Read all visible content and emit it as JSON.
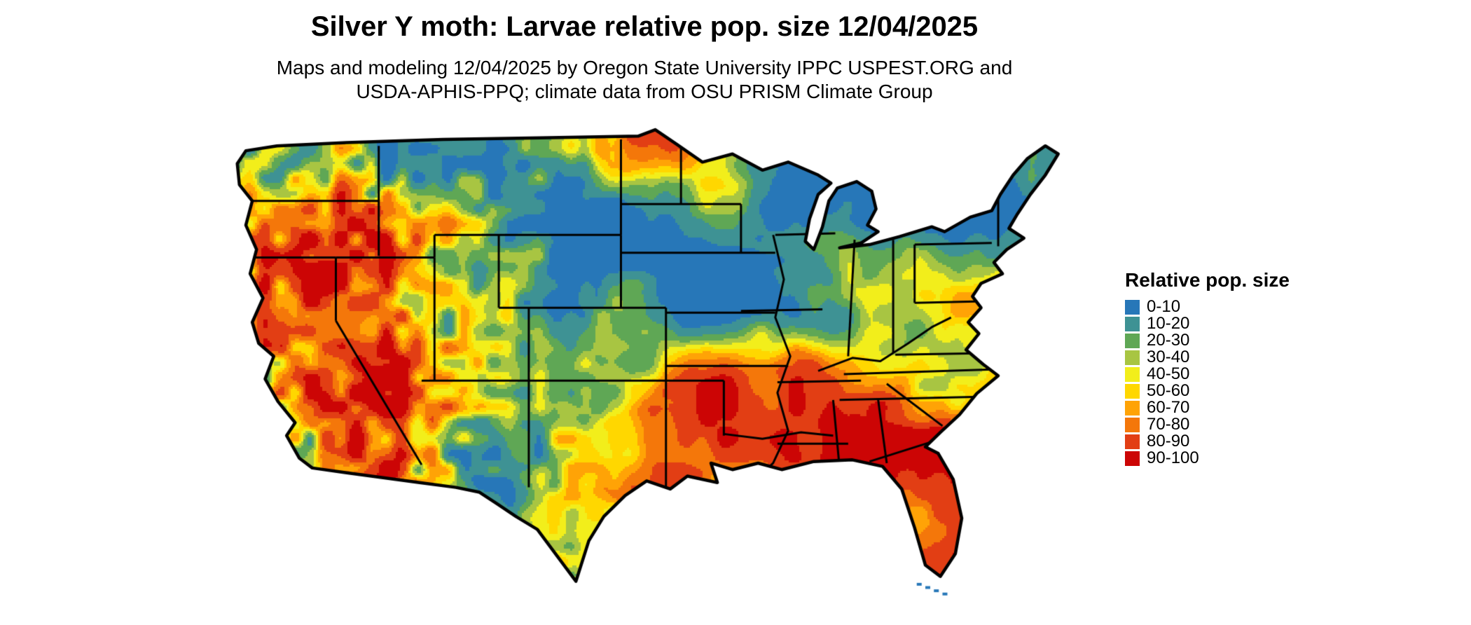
{
  "title": "Silver Y moth: Larvae relative pop. size 12/04/2025",
  "subtitle": {
    "line1": "Maps and modeling 12/04/2025 by Oregon State University IPPC USPEST.ORG and",
    "line2": "USDA-APHIS-PPQ; climate data from OSU PRISM Climate Group"
  },
  "legend": {
    "title": "Relative pop. size",
    "entries": [
      {
        "label": "0-10",
        "color": "#2777B8"
      },
      {
        "label": "10-20",
        "color": "#3E9294"
      },
      {
        "label": "20-30",
        "color": "#5FA755"
      },
      {
        "label": "30-40",
        "color": "#A8C542"
      },
      {
        "label": "40-50",
        "color": "#F2EE1B"
      },
      {
        "label": "50-60",
        "color": "#FFD700"
      },
      {
        "label": "60-70",
        "color": "#FFA306"
      },
      {
        "label": "70-80",
        "color": "#F4770A"
      },
      {
        "label": "80-90",
        "color": "#E23E14"
      },
      {
        "label": "90-100",
        "color": "#CC0505"
      }
    ]
  },
  "map": {
    "region": "Contiguous United States",
    "outline_color": "#000000",
    "background": "#FFFFFF"
  }
}
